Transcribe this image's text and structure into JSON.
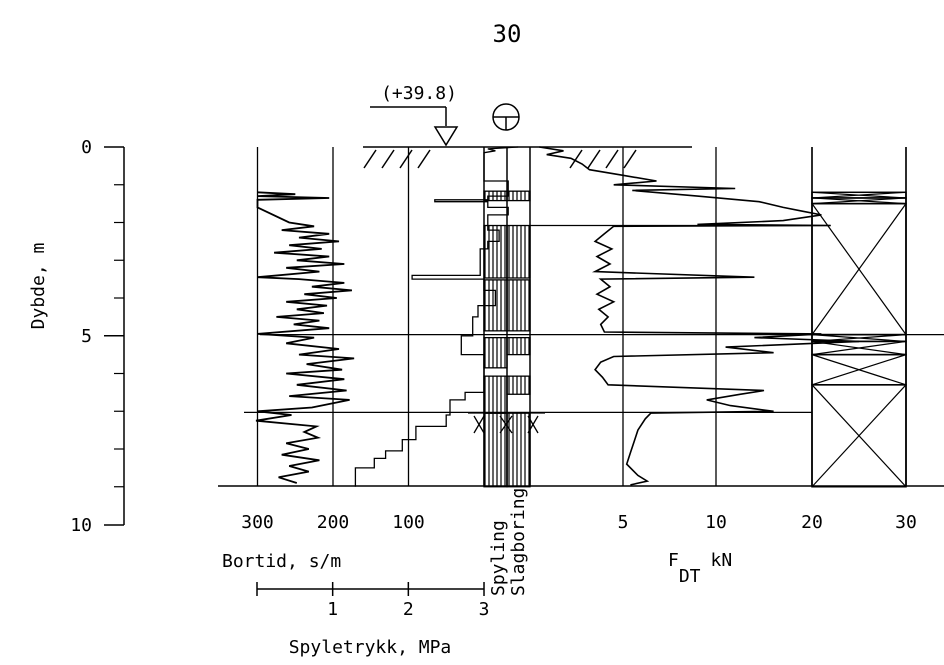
{
  "page_number": "30",
  "elevation_label": "(+39.8)",
  "depth_axis": {
    "label": "Dybde, m",
    "ticks": [
      {
        "depth": 0,
        "label": "0"
      },
      {
        "depth": 5,
        "label": "5"
      },
      {
        "depth": 10,
        "label": "10"
      }
    ]
  },
  "bortid_axis": {
    "label": "Bortid, s/m",
    "ticks": [
      {
        "value": 300,
        "label": "300"
      },
      {
        "value": 200,
        "label": "200"
      },
      {
        "value": 100,
        "label": "100"
      }
    ]
  },
  "spyletrykk_axis": {
    "label": "Spyletrykk, MPa",
    "ticks": [
      {
        "value": 1,
        "label": "1"
      },
      {
        "value": 2,
        "label": "2"
      },
      {
        "value": 3,
        "label": "3"
      }
    ]
  },
  "column_labels": {
    "spyling": "Spyling",
    "slagboring": "Slagboring"
  },
  "fdt_axis": {
    "label_main": "F",
    "label_sub": "DT",
    "label_unit": "kN",
    "ticks": [
      {
        "value": 5,
        "label": "5"
      },
      {
        "value": 10,
        "label": "10"
      },
      {
        "value": 20,
        "label": "20"
      },
      {
        "value": 30,
        "label": "30"
      }
    ]
  },
  "chart_data": {
    "type": "line",
    "depth_range_m": [
      0,
      9
    ],
    "series": [
      {
        "key": "bortid",
        "unit": "s/m",
        "points": [
          [
            1.2,
            300
          ],
          [
            1.25,
            250
          ],
          [
            1.3,
            300
          ],
          [
            1.35,
            205
          ],
          [
            1.4,
            300
          ],
          [
            1.6,
            300
          ],
          [
            2.0,
            258
          ],
          [
            2.1,
            225
          ],
          [
            2.2,
            268
          ],
          [
            2.3,
            205
          ],
          [
            2.4,
            245
          ],
          [
            2.5,
            192
          ],
          [
            2.6,
            258
          ],
          [
            2.7,
            215
          ],
          [
            2.8,
            278
          ],
          [
            2.9,
            205
          ],
          [
            3.0,
            248
          ],
          [
            3.1,
            185
          ],
          [
            3.2,
            262
          ],
          [
            3.3,
            218
          ],
          [
            3.45,
            300
          ],
          [
            3.5,
            245
          ],
          [
            3.6,
            185
          ],
          [
            3.7,
            228
          ],
          [
            3.8,
            175
          ],
          [
            3.9,
            238
          ],
          [
            4.0,
            195
          ],
          [
            4.1,
            262
          ],
          [
            4.2,
            208
          ],
          [
            4.3,
            248
          ],
          [
            4.4,
            212
          ],
          [
            4.5,
            275
          ],
          [
            4.6,
            218
          ],
          [
            4.7,
            252
          ],
          [
            4.8,
            205
          ],
          [
            4.95,
            300
          ],
          [
            5.05,
            225
          ],
          [
            5.2,
            262
          ],
          [
            5.35,
            192
          ],
          [
            5.5,
            245
          ],
          [
            5.6,
            172
          ],
          [
            5.75,
            235
          ],
          [
            5.9,
            188
          ],
          [
            6.0,
            262
          ],
          [
            6.15,
            185
          ],
          [
            6.3,
            248
          ],
          [
            6.45,
            182
          ],
          [
            6.6,
            258
          ],
          [
            6.7,
            178
          ],
          [
            6.9,
            228
          ],
          [
            7.0,
            300
          ],
          [
            7.1,
            255
          ],
          [
            7.25,
            302
          ],
          [
            7.4,
            222
          ],
          [
            7.55,
            238
          ],
          [
            7.7,
            220
          ],
          [
            7.85,
            262
          ],
          [
            8.0,
            232
          ],
          [
            8.15,
            268
          ],
          [
            8.3,
            218
          ],
          [
            8.45,
            258
          ],
          [
            8.6,
            232
          ],
          [
            8.75,
            272
          ],
          [
            8.9,
            248
          ]
        ]
      },
      {
        "key": "spyletrykk",
        "unit": "MPa",
        "points": [
          [
            0.0,
            3.45
          ],
          [
            0.05,
            3.05
          ],
          [
            0.1,
            3.15
          ],
          [
            0.15,
            3.0
          ],
          [
            0.9,
            3.0
          ],
          [
            0.9,
            3.32
          ],
          [
            1.3,
            3.32
          ],
          [
            1.3,
            3.05
          ],
          [
            1.4,
            3.05
          ],
          [
            1.4,
            2.35
          ],
          [
            1.45,
            2.35
          ],
          [
            1.45,
            3.05
          ],
          [
            1.6,
            3.05
          ],
          [
            1.6,
            3.32
          ],
          [
            1.8,
            3.32
          ],
          [
            1.8,
            3.05
          ],
          [
            2.2,
            3.05
          ],
          [
            2.2,
            3.2
          ],
          [
            2.5,
            3.2
          ],
          [
            2.5,
            3.05
          ],
          [
            2.7,
            3.05
          ],
          [
            2.7,
            2.95
          ],
          [
            3.4,
            2.95
          ],
          [
            3.4,
            2.05
          ],
          [
            3.5,
            2.05
          ],
          [
            3.5,
            3.0
          ],
          [
            3.8,
            3.0
          ],
          [
            3.8,
            3.15
          ],
          [
            4.2,
            3.15
          ],
          [
            4.2,
            2.92
          ],
          [
            4.5,
            2.92
          ],
          [
            4.5,
            2.85
          ],
          [
            5.0,
            2.85
          ],
          [
            5.0,
            2.7
          ],
          [
            5.5,
            2.7
          ],
          [
            5.5,
            3.0
          ],
          [
            6.2,
            3.0
          ],
          [
            6.2,
            3.0
          ],
          [
            6.5,
            3.0
          ],
          [
            6.5,
            2.75
          ],
          [
            6.7,
            2.75
          ],
          [
            6.7,
            2.55
          ],
          [
            7.1,
            2.55
          ],
          [
            7.1,
            2.5
          ],
          [
            7.4,
            2.5
          ],
          [
            7.4,
            2.1
          ],
          [
            7.75,
            2.1
          ],
          [
            7.75,
            1.92
          ],
          [
            8.05,
            1.92
          ],
          [
            8.05,
            1.7
          ],
          [
            8.25,
            1.7
          ],
          [
            8.25,
            1.55
          ],
          [
            8.5,
            1.55
          ],
          [
            8.5,
            1.3
          ],
          [
            9.0,
            1.3
          ]
        ]
      },
      {
        "key": "fdt",
        "unit": "kN",
        "points": [
          [
            0.0,
            0.5
          ],
          [
            0.1,
            1.8
          ],
          [
            0.2,
            0.9
          ],
          [
            0.3,
            2.2
          ],
          [
            0.45,
            2.8
          ],
          [
            0.6,
            3.2
          ],
          [
            0.75,
            5.0
          ],
          [
            0.9,
            6.8
          ],
          [
            1.0,
            4.5
          ],
          [
            1.1,
            12.0
          ],
          [
            1.15,
            5.5
          ],
          [
            1.3,
            9.0
          ],
          [
            1.45,
            14.5
          ],
          [
            1.6,
            17.0
          ],
          [
            1.7,
            19.0
          ],
          [
            1.8,
            21.0
          ],
          [
            1.95,
            17.0
          ],
          [
            2.05,
            9.0
          ],
          [
            2.08,
            22.0
          ],
          [
            2.1,
            4.5
          ],
          [
            2.3,
            4.0
          ],
          [
            2.5,
            3.5
          ],
          [
            2.7,
            4.4
          ],
          [
            2.9,
            3.6
          ],
          [
            3.1,
            4.3
          ],
          [
            3.3,
            3.5
          ],
          [
            3.45,
            14.0
          ],
          [
            3.5,
            3.8
          ],
          [
            3.7,
            4.3
          ],
          [
            3.9,
            3.6
          ],
          [
            4.1,
            4.5
          ],
          [
            4.3,
            3.7
          ],
          [
            4.5,
            4.2
          ],
          [
            4.7,
            3.8
          ],
          [
            4.9,
            4.0
          ],
          [
            4.95,
            21.0
          ],
          [
            5.05,
            14.0
          ],
          [
            5.15,
            25.0
          ],
          [
            5.3,
            11.0
          ],
          [
            5.45,
            16.0
          ],
          [
            5.55,
            4.5
          ],
          [
            5.7,
            3.8
          ],
          [
            5.9,
            3.5
          ],
          [
            6.1,
            3.9
          ],
          [
            6.3,
            4.2
          ],
          [
            6.45,
            15.0
          ],
          [
            6.55,
            12.5
          ],
          [
            6.7,
            9.5
          ],
          [
            6.85,
            11.5
          ],
          [
            7.0,
            16.0
          ],
          [
            7.05,
            6.5
          ],
          [
            7.2,
            6.2
          ],
          [
            7.5,
            5.8
          ],
          [
            7.8,
            5.6
          ],
          [
            8.1,
            5.4
          ],
          [
            8.4,
            5.2
          ],
          [
            8.7,
            5.8
          ],
          [
            8.85,
            6.3
          ],
          [
            8.95,
            5.4
          ]
        ]
      }
    ],
    "spyling_hatched_intervals": [
      [
        1.17,
        1.42
      ],
      [
        2.08,
        3.47
      ],
      [
        3.52,
        4.87
      ],
      [
        5.05,
        5.85
      ],
      [
        6.07,
        7.05
      ],
      [
        7.05,
        9.0
      ]
    ],
    "slagboring_hatched_intervals": [
      [
        1.17,
        1.42
      ],
      [
        2.08,
        3.47
      ],
      [
        3.52,
        4.87
      ],
      [
        5.05,
        5.5
      ],
      [
        6.07,
        6.55
      ],
      [
        7.05,
        9.0
      ]
    ],
    "sample_boxes": [
      [
        1.2,
        1.35
      ],
      [
        1.35,
        1.5
      ],
      [
        1.5,
        4.97
      ],
      [
        4.97,
        5.15
      ],
      [
        5.15,
        5.5
      ],
      [
        5.5,
        6.3
      ],
      [
        6.3,
        9.0
      ]
    ]
  }
}
